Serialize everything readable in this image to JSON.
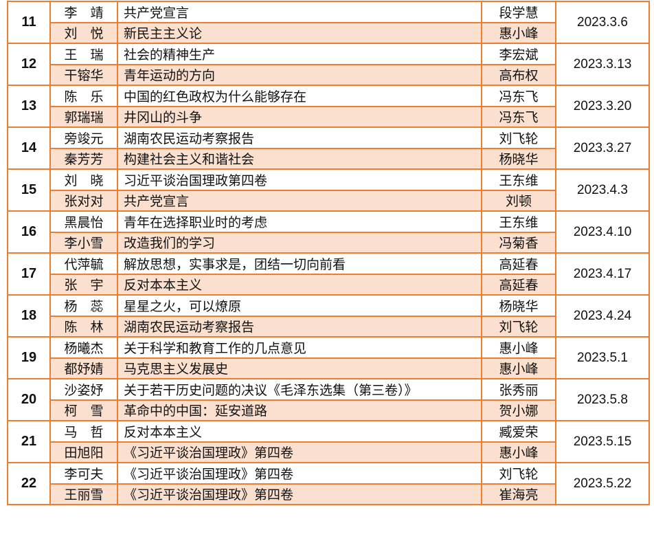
{
  "colors": {
    "border": "#ed7d31",
    "alt_row": "#fbe0cf"
  },
  "groups": [
    {
      "no": "11",
      "date": "2023.3.6",
      "rows": [
        {
          "name": "李　靖",
          "book": "共产党宣言",
          "teacher": "段学慧"
        },
        {
          "name": "刘　悦",
          "book": "新民主主义论",
          "teacher": "惠小峰"
        }
      ]
    },
    {
      "no": "12",
      "date": "2023.3.13",
      "rows": [
        {
          "name": "王　瑞",
          "book": "社会的精神生产",
          "teacher": "李宏斌"
        },
        {
          "name": "干镕华",
          "book": "青年运动的方向",
          "teacher": "高布权"
        }
      ]
    },
    {
      "no": "13",
      "date": "2023.3.20",
      "rows": [
        {
          "name": "陈　乐",
          "book": "中国的红色政权为什么能够存在",
          "teacher": "冯东飞"
        },
        {
          "name": "郭瑞瑞",
          "book": "井冈山的斗争",
          "teacher": "冯东飞"
        }
      ]
    },
    {
      "no": "14",
      "date": "2023.3.27",
      "rows": [
        {
          "name": "旁竣元",
          "book": "湖南农民运动考察报告",
          "teacher": "刘飞轮"
        },
        {
          "name": "秦芳芳",
          "book": "构建社会主义和谐社会",
          "teacher": "杨晓华"
        }
      ]
    },
    {
      "no": "15",
      "date": "2023.4.3",
      "rows": [
        {
          "name": "刘　晓",
          "book": "习近平谈治国理政第四卷",
          "teacher": "王东维"
        },
        {
          "name": "张对对",
          "book": "共产党宣言",
          "teacher": "刘顿"
        }
      ]
    },
    {
      "no": "16",
      "date": "2023.4.10",
      "rows": [
        {
          "name": "黑晨怡",
          "book": "青年在选择职业时的考虑",
          "teacher": "王东维"
        },
        {
          "name": "李小雪",
          "book": "改造我们的学习",
          "teacher": "冯菊香"
        }
      ]
    },
    {
      "no": "17",
      "date": "2023.4.17",
      "rows": [
        {
          "name": "代萍毓",
          "book": "解放思想，实事求是，团结一切向前看",
          "teacher": "高延春"
        },
        {
          "name": "张　宇",
          "book": "反对本本主义",
          "teacher": "高延春"
        }
      ]
    },
    {
      "no": "18",
      "date": "2023.4.24",
      "rows": [
        {
          "name": "杨　蕊",
          "book": "星星之火，可以燎原",
          "teacher": "杨晓华"
        },
        {
          "name": "陈　林",
          "book": "湖南农民运动考察报告",
          "teacher": "刘飞轮"
        }
      ]
    },
    {
      "no": "19",
      "date": "2023.5.1",
      "rows": [
        {
          "name": "杨曦杰",
          "book": "关于科学和教育工作的几点意见",
          "teacher": "惠小峰"
        },
        {
          "name": "都妤婧",
          "book": "马克思主义发展史",
          "teacher": "惠小峰"
        }
      ]
    },
    {
      "no": "20",
      "date": "2023.5.8",
      "rows": [
        {
          "name": "沙姿妤",
          "book": "关于若干历史问题的决议《毛泽东选集（第三卷）》",
          "teacher": "张秀丽"
        },
        {
          "name": "柯　雪",
          "book": "革命中的中国：延安道路",
          "teacher": "贺小娜"
        }
      ]
    },
    {
      "no": "21",
      "date": "2023.5.15",
      "rows": [
        {
          "name": "马　哲",
          "book": "反对本本主义",
          "teacher": "臧爱荣"
        },
        {
          "name": "田旭阳",
          "book": "《习近平谈治国理政》第四卷",
          "teacher": "惠小峰"
        }
      ]
    },
    {
      "no": "22",
      "date": "2023.5.22",
      "rows": [
        {
          "name": "李可夫",
          "book": "《习近平谈治国理政》第四卷",
          "teacher": "刘飞轮"
        },
        {
          "name": "王丽雪",
          "book": "《习近平谈治国理政》第四卷",
          "teacher": "崔海亮"
        }
      ]
    }
  ]
}
